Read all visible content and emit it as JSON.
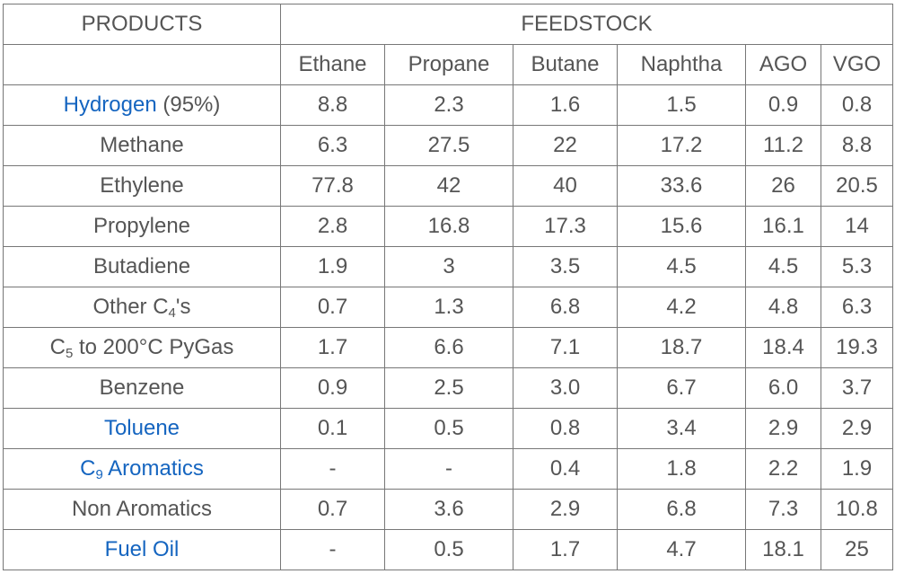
{
  "header": {
    "products": "PRODUCTS",
    "feedstock": "FEEDSTOCK",
    "columns": [
      "Ethane",
      "Propane",
      "Butane",
      "Naphtha",
      "AGO",
      "VGO"
    ]
  },
  "rows": [
    {
      "link": "Hydrogen",
      "suffix": " (95%)",
      "values": [
        "8.8",
        "2.3",
        "1.6",
        "1.5",
        "0.9",
        "0.8"
      ]
    },
    {
      "name": "Methane",
      "values": [
        "6.3",
        "27.5",
        "22",
        "17.2",
        "11.2",
        "8.8"
      ]
    },
    {
      "name": "Ethylene",
      "values": [
        "77.8",
        "42",
        "40",
        "33.6",
        "26",
        "20.5"
      ]
    },
    {
      "name": "Propylene",
      "values": [
        "2.8",
        "16.8",
        "17.3",
        "15.6",
        "16.1",
        "14"
      ]
    },
    {
      "name": "Butadiene",
      "values": [
        "1.9",
        "3",
        "3.5",
        "4.5",
        "4.5",
        "5.3"
      ]
    },
    {
      "pre": "Other C",
      "sub": "4",
      "post": "'s",
      "values": [
        "0.7",
        "1.3",
        "6.8",
        "4.2",
        "4.8",
        "6.3"
      ]
    },
    {
      "pre": "C",
      "sub": "5",
      "post": " to 200°C PyGas",
      "values": [
        "1.7",
        "6.6",
        "7.1",
        "18.7",
        "18.4",
        "19.3"
      ]
    },
    {
      "name": "Benzene",
      "values": [
        "0.9",
        "2.5",
        "3.0",
        "6.7",
        "6.0",
        "3.7"
      ]
    },
    {
      "link": "Toluene",
      "values": [
        "0.1",
        "0.5",
        "0.8",
        "3.4",
        "2.9",
        "2.9"
      ]
    },
    {
      "link_pre": "C",
      "link_sub": "9",
      "link_post": " Aromatics",
      "values": [
        "-",
        "-",
        "0.4",
        "1.8",
        "2.2",
        "1.9"
      ]
    },
    {
      "name": "Non Aromatics",
      "values": [
        "0.7",
        "3.6",
        "2.9",
        "6.8",
        "7.3",
        "10.8"
      ]
    },
    {
      "link": "Fuel Oil",
      "values": [
        "-",
        "0.5",
        "1.7",
        "4.7",
        "18.1",
        "25"
      ]
    }
  ],
  "colors": {
    "text": "#555555",
    "link": "#1565c0",
    "border": "#777777"
  }
}
